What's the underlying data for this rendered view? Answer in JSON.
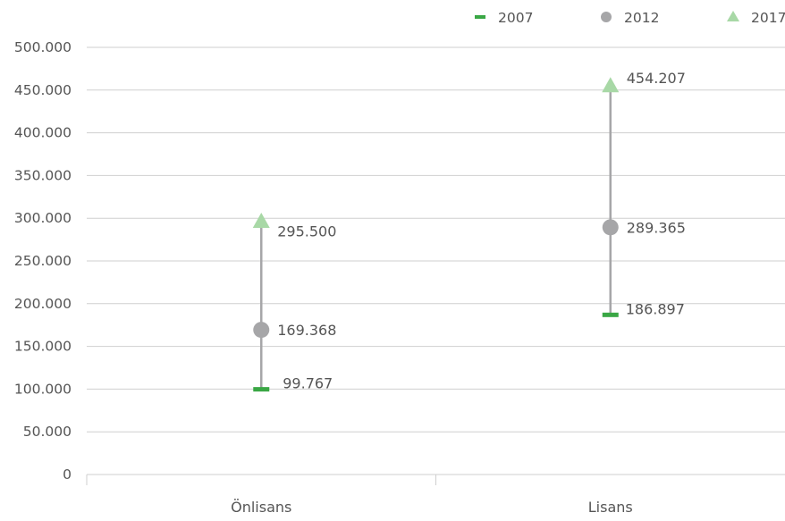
{
  "chart_data": {
    "type": "dumbbell",
    "categories": [
      "Önlisans",
      "Lisans"
    ],
    "series": [
      {
        "name": "2007",
        "marker": "dash",
        "color": "#3aa745",
        "values": [
          99767,
          186897
        ],
        "labels": [
          "99.767",
          "186.897"
        ]
      },
      {
        "name": "2012",
        "marker": "circle",
        "color": "#a6a6a8",
        "values": [
          169368,
          289365
        ],
        "labels": [
          "169.368",
          "289.365"
        ]
      },
      {
        "name": "2017",
        "marker": "triangle",
        "color": "#a8d8a6",
        "values": [
          295500,
          454207
        ],
        "labels": [
          "295.500",
          "454.207"
        ]
      }
    ],
    "ylim": [
      0,
      500000
    ],
    "y_ticks": [
      0,
      50000,
      100000,
      150000,
      200000,
      250000,
      300000,
      350000,
      400000,
      450000,
      500000
    ],
    "y_tick_labels": [
      "0",
      "50.000",
      "100.000",
      "150.000",
      "200.000",
      "250.000",
      "300.000",
      "350.000",
      "400.000",
      "450.000",
      "500.000"
    ],
    "connector_color": "#a6a6a8",
    "grid": true,
    "legend_position": "top-right",
    "legend": {
      "items": [
        "2007",
        "2012",
        "2017"
      ]
    }
  }
}
